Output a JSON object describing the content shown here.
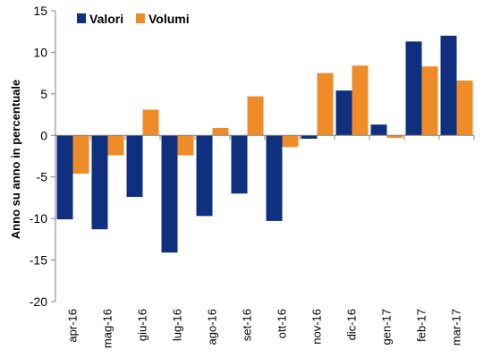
{
  "chart_data": {
    "type": "bar",
    "ylabel": "Anno su anno in percentuale",
    "xlabel": "",
    "ylim": [
      -20,
      15
    ],
    "yticks": [
      15,
      10,
      5,
      0,
      -5,
      -10,
      -15,
      -20
    ],
    "legend_position": "top-left",
    "grid": false,
    "categories": [
      "apr-16",
      "mag-16",
      "giu-16",
      "lug-16",
      "ago-16",
      "set-16",
      "ott-16",
      "nov-16",
      "dic-16",
      "gen-17",
      "feb-17",
      "mar-17"
    ],
    "series": [
      {
        "name": "Valori",
        "color": "#0F2F7F",
        "values": [
          -10.1,
          -11.3,
          -7.4,
          -14.1,
          -9.7,
          -7.0,
          -10.3,
          -0.4,
          5.4,
          1.3,
          11.3,
          12.0
        ]
      },
      {
        "name": "Volumi",
        "color": "#F08C28",
        "values": [
          -4.6,
          -2.4,
          3.1,
          -2.4,
          0.9,
          4.7,
          -1.4,
          7.5,
          8.4,
          -0.3,
          8.3,
          6.6
        ]
      }
    ]
  }
}
